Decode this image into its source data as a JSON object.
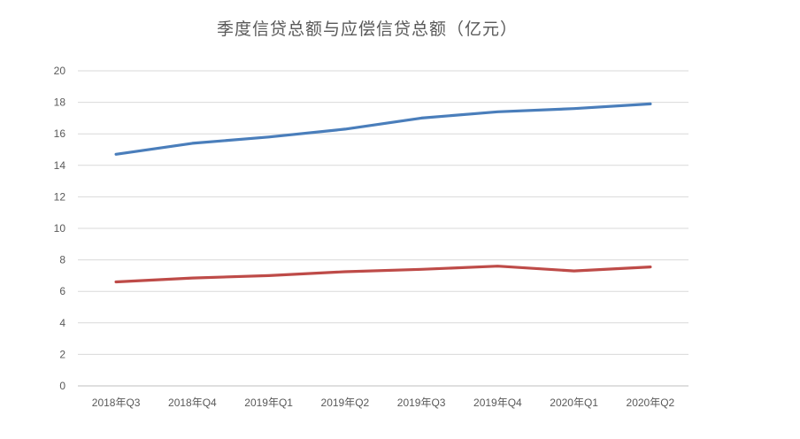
{
  "chart_data": {
    "type": "line",
    "title": "季度信贷总额与应偿信贷总额（亿元）",
    "xlabel": "",
    "ylabel": "",
    "categories": [
      "2018年Q3",
      "2018年Q4",
      "2019年Q1",
      "2019年Q2",
      "2019年Q3",
      "2019年Q4",
      "2020年Q1",
      "2020年Q2"
    ],
    "ylim": [
      0,
      20
    ],
    "yticks": [
      "0",
      "2",
      "4",
      "6",
      "8",
      "10",
      "12",
      "14",
      "16",
      "18",
      "20"
    ],
    "grid": true,
    "legend": "none",
    "series": [
      {
        "color": "#4a7ebb",
        "values": [
          14.7,
          15.4,
          15.8,
          16.3,
          17.0,
          17.4,
          17.6,
          17.9
        ]
      },
      {
        "color": "#be4b48",
        "values": [
          6.6,
          6.85,
          7.0,
          7.25,
          7.4,
          7.6,
          7.3,
          7.55
        ]
      }
    ]
  }
}
